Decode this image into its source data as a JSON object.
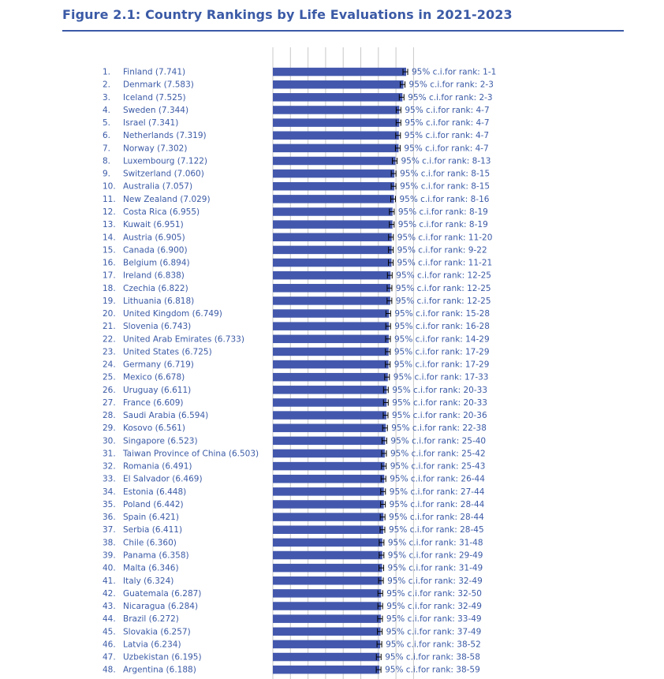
{
  "title": "Figure 2.1: Country Rankings by Life Evaluations in 2021-2023",
  "colors": {
    "title": "#3b5aa6",
    "bar": "#4358ad",
    "text": "#3b5aa6",
    "grid": "#c8c8c8"
  },
  "chart_data": {
    "type": "bar",
    "orientation": "horizontal",
    "title": "Figure 2.1: Country Rankings by Life Evaluations in 2021-2023",
    "grid": true,
    "ylim": [
      0,
      8
    ],
    "rows": [
      {
        "label": "1.",
        "name": "Finland (7.741)",
        "value": 7.741,
        "ci": "95% c.i.for rank: 1-1"
      },
      {
        "label": "2.",
        "name": "Denmark (7.583)",
        "value": 7.583,
        "ci": "95% c.i.for rank: 2-3"
      },
      {
        "label": "3.",
        "name": "Iceland (7.525)",
        "value": 7.525,
        "ci": "95% c.i.for rank: 2-3"
      },
      {
        "label": "4.",
        "name": "Sweden (7.344)",
        "value": 7.344,
        "ci": "95% c.i.for rank: 4-7"
      },
      {
        "label": "5.",
        "name": "Israel (7.341)",
        "value": 7.341,
        "ci": "95% c.i.for rank: 4-7"
      },
      {
        "label": "6.",
        "name": "Netherlands (7.319)",
        "value": 7.319,
        "ci": "95% c.i.for rank: 4-7"
      },
      {
        "label": "7.",
        "name": "Norway (7.302)",
        "value": 7.302,
        "ci": "95% c.i.for rank: 4-7"
      },
      {
        "label": "8.",
        "name": "Luxembourg (7.122)",
        "value": 7.122,
        "ci": "95% c.i.for rank: 8-13"
      },
      {
        "label": "9.",
        "name": "Switzerland (7.060)",
        "value": 7.06,
        "ci": "95% c.i.for rank: 8-15"
      },
      {
        "label": "10.",
        "name": "Australia (7.057)",
        "value": 7.057,
        "ci": "95% c.i.for rank: 8-15"
      },
      {
        "label": "11.",
        "name": "New Zealand (7.029)",
        "value": 7.029,
        "ci": "95% c.i.for rank: 8-16"
      },
      {
        "label": "12.",
        "name": "Costa Rica (6.955)",
        "value": 6.955,
        "ci": "95% c.i.for rank: 8-19"
      },
      {
        "label": "13.",
        "name": "Kuwait (6.951)",
        "value": 6.951,
        "ci": "95% c.i.for rank: 8-19"
      },
      {
        "label": "14.",
        "name": "Austria (6.905)",
        "value": 6.905,
        "ci": "95% c.i.for rank: 11-20"
      },
      {
        "label": "15.",
        "name": "Canada (6.900)",
        "value": 6.9,
        "ci": "95% c.i.for rank: 9-22"
      },
      {
        "label": "16.",
        "name": "Belgium (6.894)",
        "value": 6.894,
        "ci": "95% c.i.for rank: 11-21"
      },
      {
        "label": "17.",
        "name": "Ireland (6.838)",
        "value": 6.838,
        "ci": "95% c.i.for rank: 12-25"
      },
      {
        "label": "18.",
        "name": "Czechia (6.822)",
        "value": 6.822,
        "ci": "95% c.i.for rank: 12-25"
      },
      {
        "label": "19.",
        "name": "Lithuania (6.818)",
        "value": 6.818,
        "ci": "95% c.i.for rank: 12-25"
      },
      {
        "label": "20.",
        "name": "United Kingdom (6.749)",
        "value": 6.749,
        "ci": "95% c.i.for rank: 15-28"
      },
      {
        "label": "21.",
        "name": "Slovenia (6.743)",
        "value": 6.743,
        "ci": "95% c.i.for rank: 16-28"
      },
      {
        "label": "22.",
        "name": "United Arab Emirates (6.733)",
        "value": 6.733,
        "ci": "95% c.i.for rank: 14-29"
      },
      {
        "label": "23.",
        "name": "United States (6.725)",
        "value": 6.725,
        "ci": "95% c.i.for rank: 17-29"
      },
      {
        "label": "24.",
        "name": "Germany (6.719)",
        "value": 6.719,
        "ci": "95% c.i.for rank: 17-29"
      },
      {
        "label": "25.",
        "name": "Mexico (6.678)",
        "value": 6.678,
        "ci": "95% c.i.for rank: 17-33"
      },
      {
        "label": "26.",
        "name": "Uruguay (6.611)",
        "value": 6.611,
        "ci": "95% c.i.for rank: 20-33"
      },
      {
        "label": "27.",
        "name": "France (6.609)",
        "value": 6.609,
        "ci": "95% c.i.for rank: 20-33"
      },
      {
        "label": "28.",
        "name": "Saudi Arabia (6.594)",
        "value": 6.594,
        "ci": "95% c.i.for rank: 20-36"
      },
      {
        "label": "29.",
        "name": "Kosovo (6.561)",
        "value": 6.561,
        "ci": "95% c.i.for rank: 22-38"
      },
      {
        "label": "30.",
        "name": "Singapore (6.523)",
        "value": 6.523,
        "ci": "95% c.i.for rank: 25-40"
      },
      {
        "label": "31.",
        "name": "Taiwan Province of China (6.503)",
        "value": 6.503,
        "ci": "95% c.i.for rank: 25-42"
      },
      {
        "label": "32.",
        "name": "Romania (6.491)",
        "value": 6.491,
        "ci": "95% c.i.for rank: 25-43"
      },
      {
        "label": "33.",
        "name": "El Salvador (6.469)",
        "value": 6.469,
        "ci": "95% c.i.for rank: 26-44"
      },
      {
        "label": "34.",
        "name": "Estonia (6.448)",
        "value": 6.448,
        "ci": "95% c.i.for rank: 27-44"
      },
      {
        "label": "35.",
        "name": "Poland (6.442)",
        "value": 6.442,
        "ci": "95% c.i.for rank: 28-44"
      },
      {
        "label": "36.",
        "name": "Spain (6.421)",
        "value": 6.421,
        "ci": "95% c.i.for rank: 28-44"
      },
      {
        "label": "37.",
        "name": "Serbia (6.411)",
        "value": 6.411,
        "ci": "95% c.i.for rank: 28-45"
      },
      {
        "label": "38.",
        "name": "Chile (6.360)",
        "value": 6.36,
        "ci": "95% c.i.for rank: 31-48"
      },
      {
        "label": "39.",
        "name": "Panama (6.358)",
        "value": 6.358,
        "ci": "95% c.i.for rank: 29-49"
      },
      {
        "label": "40.",
        "name": "Malta (6.346)",
        "value": 6.346,
        "ci": "95% c.i.for rank: 31-49"
      },
      {
        "label": "41.",
        "name": "Italy (6.324)",
        "value": 6.324,
        "ci": "95% c.i.for rank: 32-49"
      },
      {
        "label": "42.",
        "name": "Guatemala (6.287)",
        "value": 6.287,
        "ci": "95% c.i.for rank: 32-50"
      },
      {
        "label": "43.",
        "name": "Nicaragua (6.284)",
        "value": 6.284,
        "ci": "95% c.i.for rank: 32-49"
      },
      {
        "label": "44.",
        "name": "Brazil (6.272)",
        "value": 6.272,
        "ci": "95% c.i.for rank: 33-49"
      },
      {
        "label": "45.",
        "name": "Slovakia (6.257)",
        "value": 6.257,
        "ci": "95% c.i.for rank: 37-49"
      },
      {
        "label": "46.",
        "name": "Latvia (6.234)",
        "value": 6.234,
        "ci": "95% c.i.for rank: 38-52"
      },
      {
        "label": "47.",
        "name": "Uzbekistan (6.195)",
        "value": 6.195,
        "ci": "95% c.i.for rank: 38-58"
      },
      {
        "label": "48.",
        "name": "Argentina (6.188)",
        "value": 6.188,
        "ci": "95% c.i.for rank: 38-59"
      }
    ]
  }
}
